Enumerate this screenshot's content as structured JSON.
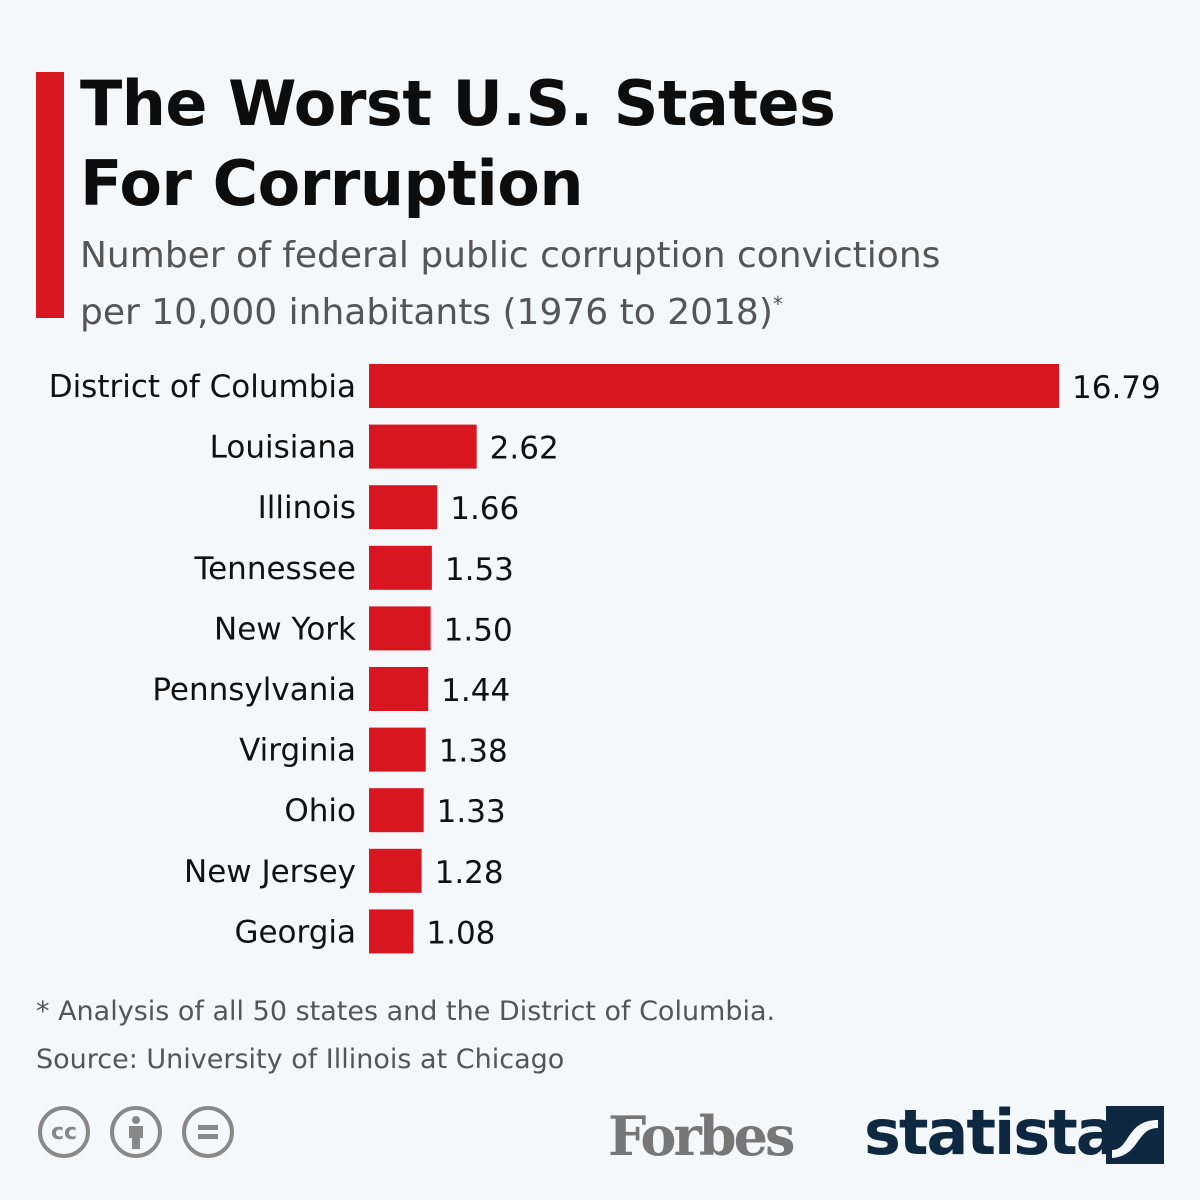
{
  "header": {
    "title_line1": "The Worst U.S. States",
    "title_line2": "For Corruption",
    "subtitle_line1": "Number of federal public corruption convictions",
    "subtitle_line2": "per 10,000 inhabitants (1976 to 2018)",
    "subtitle_mark": "*"
  },
  "colors": {
    "accent": "#d7161f",
    "bar": "#d7161f",
    "statista": "#0e2841"
  },
  "chart_data": {
    "type": "bar",
    "orientation": "horizontal",
    "categories": [
      "District of Columbia",
      "Louisiana",
      "Illinois",
      "Tennessee",
      "New York",
      "Pennsylvania",
      "Virginia",
      "Ohio",
      "New Jersey",
      "Georgia"
    ],
    "values": [
      16.79,
      2.62,
      1.66,
      1.53,
      1.5,
      1.44,
      1.38,
      1.33,
      1.28,
      1.08
    ],
    "value_labels": [
      "16.79",
      "2.62",
      "1.66",
      "1.53",
      "1.50",
      "1.44",
      "1.38",
      "1.33",
      "1.28",
      "1.08"
    ],
    "title": "The Worst U.S. States For Corruption",
    "xlabel": "",
    "ylabel": "",
    "xlim": [
      0,
      16.79
    ],
    "grid": false
  },
  "footer": {
    "footnote": "* Analysis of all 50 states and the District of Columbia.",
    "source": "Source: University of Illinois at Chicago",
    "license_icons": [
      "creative-commons-icon",
      "attribution-icon",
      "no-derivatives-icon"
    ],
    "cc_text": "cc",
    "logos": {
      "forbes": "Forbes",
      "statista": "statista"
    }
  }
}
